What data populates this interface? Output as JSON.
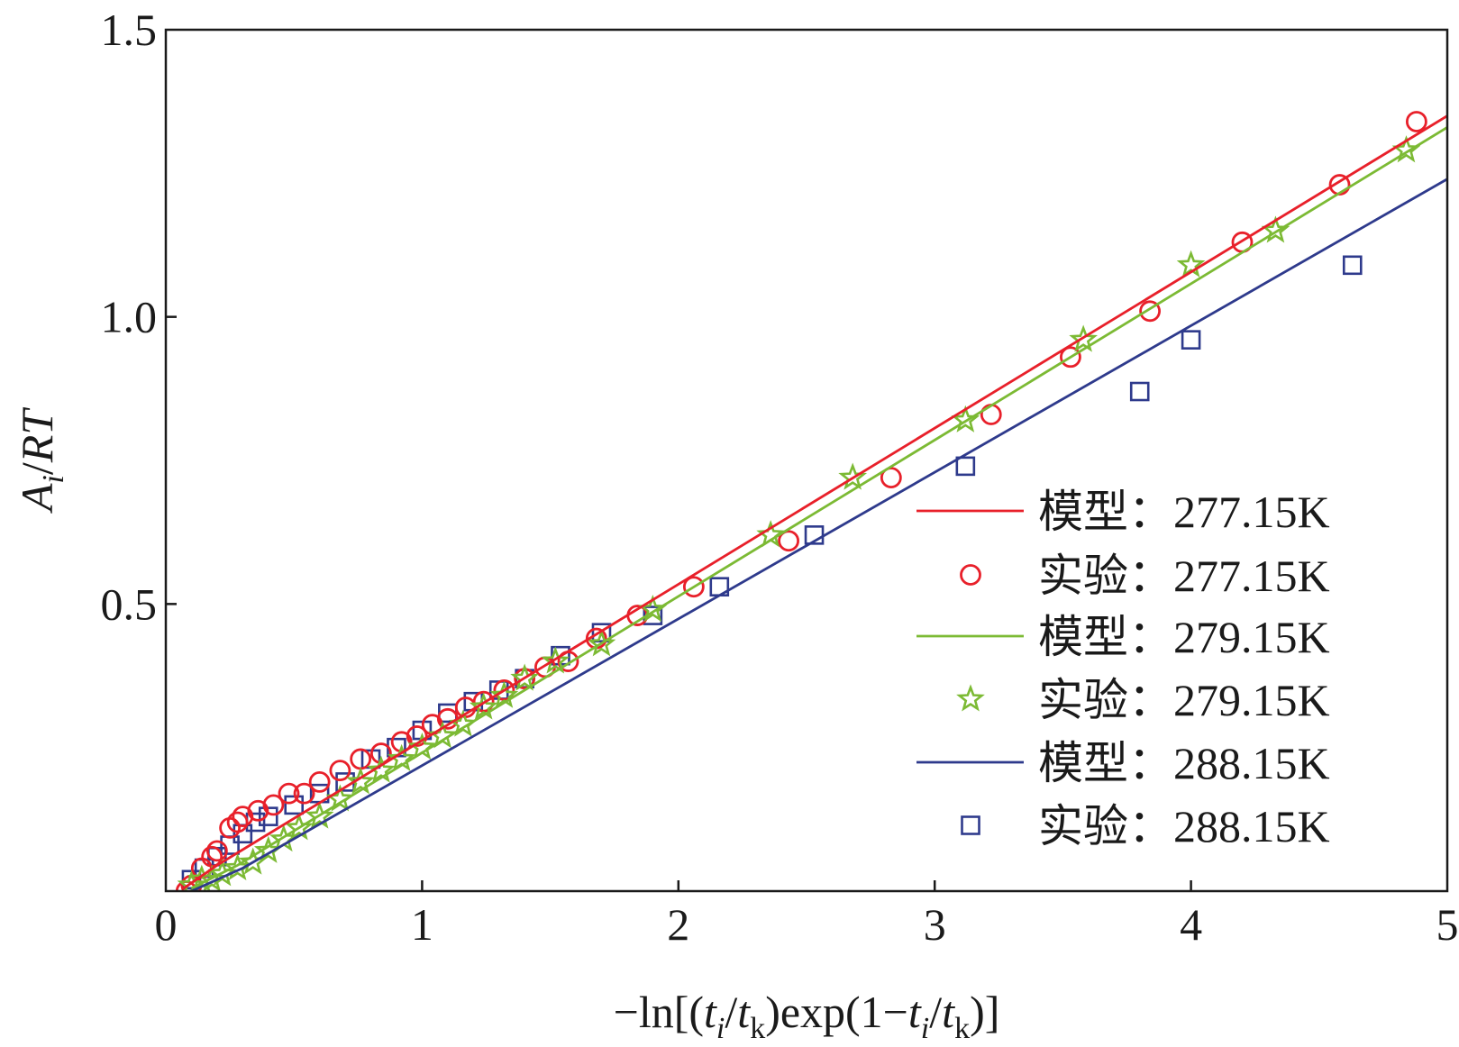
{
  "chart_data": {
    "type": "scatter",
    "xlabel_parts": [
      "−ln[(",
      "t",
      "i",
      "/",
      "t",
      "k",
      ")exp(1−",
      "t",
      "i",
      "/",
      "t",
      "k",
      ")]"
    ],
    "ylabel_parts": [
      "A",
      "i",
      "/",
      "RT"
    ],
    "xlim": [
      0,
      5
    ],
    "ylim": [
      0,
      1.5
    ],
    "xticks": [
      0,
      1,
      2,
      3,
      4,
      5
    ],
    "xtick_labels": [
      "0",
      "1",
      "2",
      "3",
      "4",
      "5"
    ],
    "yticks": [
      0.5,
      1.0,
      1.5
    ],
    "ytick_labels": [
      "0.5",
      "1.0",
      "1.5"
    ],
    "grid": false,
    "legend_position": "lower-right",
    "series": [
      {
        "name": "模型：277.15K",
        "legend_label": "模型：277.15K",
        "kind": "line",
        "color": "#e8202a",
        "x": [
          0.07,
          0.2,
          5.0
        ],
        "y": [
          0.005,
          0.045,
          1.35
        ]
      },
      {
        "name": "实验：277.15K",
        "legend_label": "实验：277.15K",
        "kind": "scatter",
        "marker": "circle",
        "color": "#e8202a",
        "x": [
          0.08,
          0.1,
          0.14,
          0.18,
          0.2,
          0.25,
          0.28,
          0.3,
          0.36,
          0.42,
          0.48,
          0.54,
          0.6,
          0.68,
          0.76,
          0.84,
          0.92,
          0.98,
          1.04,
          1.1,
          1.17,
          1.24,
          1.32,
          1.4,
          1.48,
          1.57,
          1.68,
          1.84,
          2.06,
          2.43,
          2.83,
          3.22,
          3.53,
          3.84,
          4.2,
          4.58,
          4.88
        ],
        "y": [
          0.0,
          0.01,
          0.04,
          0.06,
          0.07,
          0.11,
          0.12,
          0.13,
          0.14,
          0.15,
          0.17,
          0.17,
          0.19,
          0.21,
          0.23,
          0.24,
          0.26,
          0.27,
          0.29,
          0.3,
          0.32,
          0.33,
          0.35,
          0.37,
          0.39,
          0.4,
          0.44,
          0.48,
          0.53,
          0.61,
          0.72,
          0.83,
          0.93,
          1.01,
          1.13,
          1.23,
          1.34
        ]
      },
      {
        "name": "模型：279.15K",
        "legend_label": "模型：279.15K",
        "kind": "line",
        "color": "#7cba34",
        "x": [
          0.1,
          0.28,
          5.0
        ],
        "y": [
          0.005,
          0.045,
          1.33
        ]
      },
      {
        "name": "实验：279.15K",
        "legend_label": "实验：279.15K",
        "kind": "scatter",
        "marker": "star",
        "color": "#7cba34",
        "x": [
          0.1,
          0.14,
          0.18,
          0.22,
          0.28,
          0.34,
          0.4,
          0.46,
          0.52,
          0.6,
          0.68,
          0.76,
          0.84,
          0.92,
          1.0,
          1.08,
          1.16,
          1.24,
          1.32,
          1.4,
          1.52,
          1.7,
          1.9,
          2.36,
          2.68,
          3.12,
          3.58,
          4.0,
          4.33,
          4.84
        ],
        "y": [
          0.01,
          0.02,
          0.02,
          0.03,
          0.04,
          0.05,
          0.07,
          0.09,
          0.11,
          0.13,
          0.16,
          0.19,
          0.21,
          0.23,
          0.25,
          0.27,
          0.29,
          0.32,
          0.34,
          0.37,
          0.4,
          0.43,
          0.49,
          0.62,
          0.72,
          0.82,
          0.96,
          1.09,
          1.15,
          1.29
        ]
      },
      {
        "name": "模型：288.15K",
        "legend_label": "模型：288.15K",
        "kind": "line",
        "color": "#2e3a8c",
        "x": [
          0.1,
          0.3,
          5.0
        ],
        "y": [
          0.0,
          0.04,
          1.24
        ]
      },
      {
        "name": "实验：288.15K",
        "legend_label": "实验：288.15K",
        "kind": "scatter",
        "marker": "square",
        "color": "#2e3a8c",
        "x": [
          0.1,
          0.15,
          0.2,
          0.25,
          0.3,
          0.35,
          0.4,
          0.5,
          0.6,
          0.7,
          0.8,
          0.9,
          1.0,
          1.1,
          1.2,
          1.3,
          1.4,
          1.54,
          1.7,
          1.9,
          2.16,
          2.53,
          3.12,
          3.8,
          4.0,
          4.63
        ],
        "y": [
          0.02,
          0.04,
          0.06,
          0.08,
          0.1,
          0.12,
          0.13,
          0.15,
          0.17,
          0.19,
          0.23,
          0.25,
          0.28,
          0.31,
          0.33,
          0.35,
          0.37,
          0.41,
          0.45,
          0.48,
          0.53,
          0.62,
          0.74,
          0.87,
          0.96,
          1.09
        ]
      }
    ]
  }
}
